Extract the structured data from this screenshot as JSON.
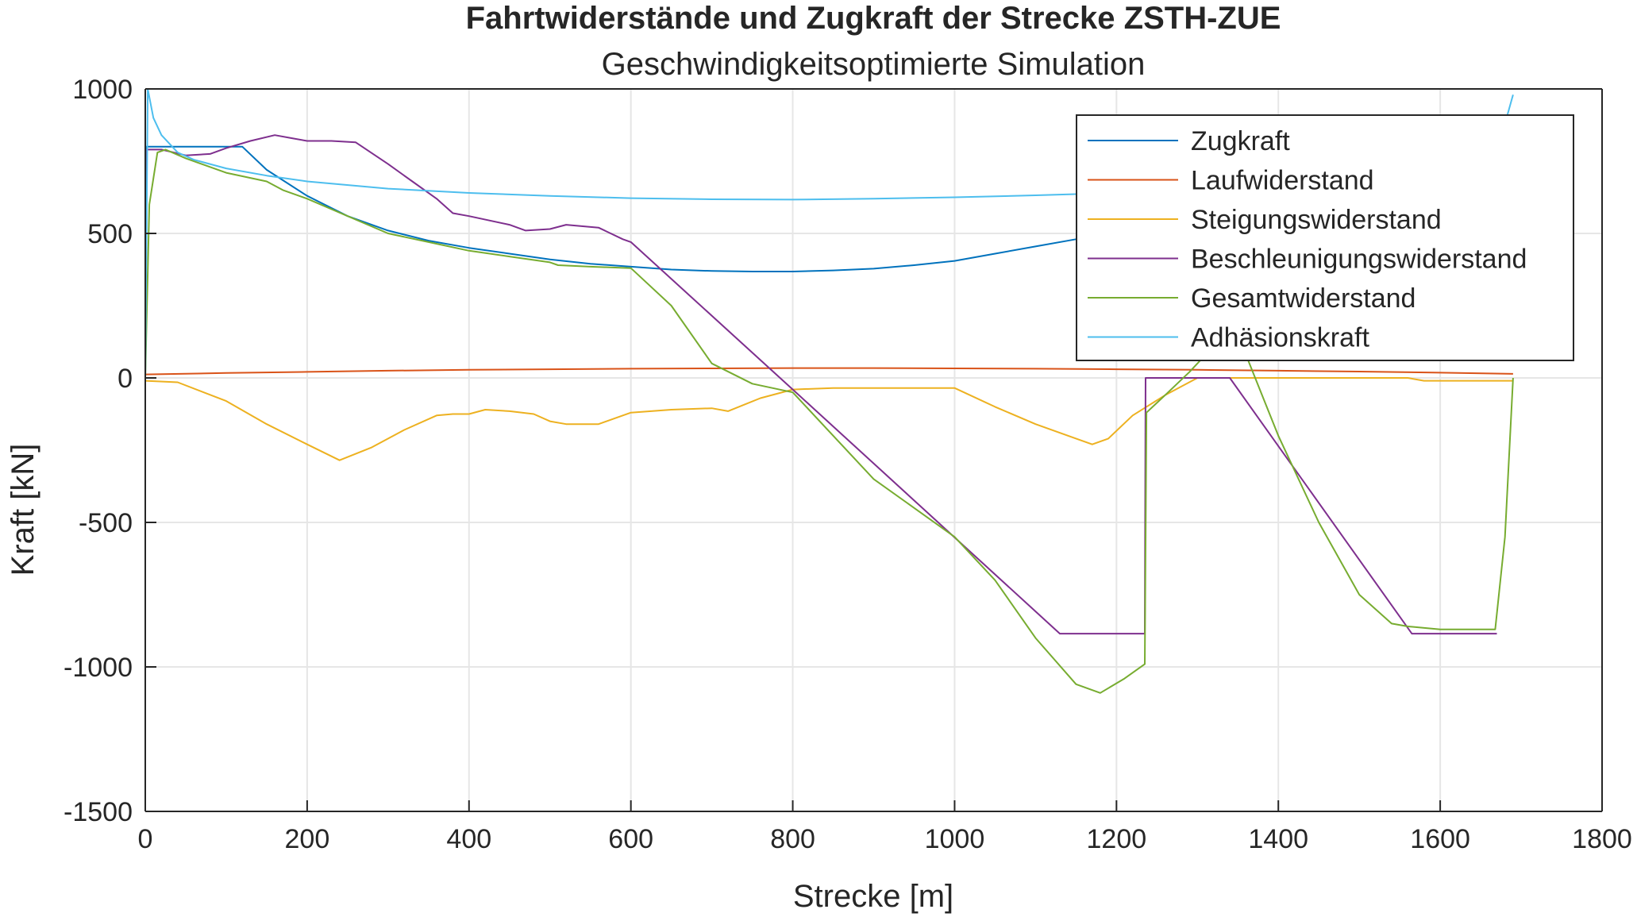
{
  "chart_data": {
    "type": "line",
    "title": "Fahrtwiderstände und Zugkraft der Strecke ZSTH-ZUE",
    "subtitle": "Geschwindigkeitsoptimierte Simulation",
    "xlabel": "Strecke [m]",
    "ylabel": "Kraft [kN]",
    "xlim": [
      0,
      1800
    ],
    "ylim": [
      -1500,
      1000
    ],
    "xticks": [
      0,
      200,
      400,
      600,
      800,
      1000,
      1200,
      1400,
      1600,
      1800
    ],
    "yticks": [
      -1500,
      -1000,
      -500,
      0,
      500,
      1000
    ],
    "xtick_labels": [
      "0",
      "200",
      "400",
      "600",
      "800",
      "1000",
      "1200",
      "1400",
      "1600",
      "1800"
    ],
    "ytick_labels": [
      "-1500",
      "-1000",
      "-500",
      "0",
      "500",
      "1000"
    ],
    "grid": true,
    "legend_position": "top-right",
    "series": [
      {
        "name": "Zugkraft",
        "color": "#0072BD",
        "x": [
          0,
          1,
          2,
          60,
          120,
          150,
          200,
          250,
          300,
          350,
          400,
          450,
          500,
          550,
          600,
          650,
          700,
          750,
          800,
          850,
          900,
          950,
          1000,
          1050,
          1100,
          1150,
          1180
        ],
        "y": [
          0,
          800,
          800,
          800,
          800,
          720,
          630,
          560,
          510,
          475,
          450,
          430,
          410,
          395,
          385,
          375,
          370,
          368,
          368,
          372,
          378,
          390,
          405,
          430,
          455,
          480,
          500
        ]
      },
      {
        "name": "Laufwiderstand",
        "color": "#D95319",
        "x": [
          0,
          100,
          200,
          300,
          400,
          500,
          600,
          700,
          800,
          900,
          1000,
          1100,
          1200,
          1300,
          1400,
          1500,
          1600,
          1690
        ],
        "y": [
          12,
          17,
          21,
          25,
          28,
          30,
          32,
          33,
          34,
          34,
          33,
          32,
          30,
          28,
          25,
          22,
          18,
          14
        ]
      },
      {
        "name": "Steigungswiderstand",
        "color": "#EDB120",
        "x": [
          0,
          40,
          100,
          150,
          200,
          240,
          280,
          320,
          360,
          380,
          400,
          420,
          450,
          480,
          500,
          520,
          560,
          600,
          650,
          700,
          720,
          760,
          800,
          850,
          900,
          1000,
          1050,
          1100,
          1150,
          1170,
          1190,
          1220,
          1260,
          1300,
          1330,
          1560,
          1580,
          1600,
          1690
        ],
        "y": [
          -10,
          -15,
          -80,
          -160,
          -230,
          -285,
          -240,
          -180,
          -130,
          -125,
          -125,
          -110,
          -115,
          -125,
          -150,
          -160,
          -160,
          -120,
          -110,
          -105,
          -115,
          -70,
          -40,
          -35,
          -35,
          -35,
          -100,
          -160,
          -210,
          -230,
          -210,
          -130,
          -60,
          0,
          0,
          0,
          -10,
          -10,
          -10
        ]
      },
      {
        "name": "Beschleunigungswiderstand",
        "color": "#7E2F8E",
        "x": [
          0,
          2,
          20,
          50,
          80,
          100,
          130,
          160,
          180,
          200,
          230,
          260,
          300,
          330,
          360,
          380,
          400,
          450,
          470,
          500,
          520,
          560,
          590,
          600,
          800,
          1130,
          1235,
          1236,
          1340,
          1565,
          1670
        ],
        "y": [
          0,
          790,
          790,
          770,
          775,
          795,
          820,
          840,
          830,
          820,
          820,
          815,
          740,
          680,
          620,
          570,
          560,
          530,
          510,
          515,
          530,
          520,
          480,
          470,
          -40,
          -885,
          -885,
          0,
          0,
          -885,
          -885
        ]
      },
      {
        "name": "Gesamtwiderstand",
        "color": "#77AC30",
        "x": [
          0,
          5,
          15,
          25,
          50,
          100,
          150,
          170,
          200,
          250,
          300,
          350,
          400,
          450,
          500,
          510,
          550,
          600,
          650,
          700,
          750,
          800,
          850,
          900,
          950,
          1000,
          1050,
          1100,
          1150,
          1180,
          1210,
          1235,
          1237,
          1260,
          1290,
          1310,
          1330,
          1340,
          1360,
          1400,
          1450,
          1500,
          1540,
          1560,
          1600,
          1668,
          1680,
          1690
        ],
        "y": [
          0,
          600,
          780,
          790,
          760,
          710,
          680,
          650,
          620,
          560,
          500,
          470,
          440,
          420,
          400,
          390,
          385,
          380,
          250,
          50,
          -20,
          -50,
          -200,
          -350,
          -450,
          -550,
          -700,
          -900,
          -1060,
          -1090,
          -1040,
          -990,
          -120,
          -60,
          20,
          80,
          150,
          150,
          80,
          -200,
          -500,
          -750,
          -850,
          -860,
          -870,
          -870,
          -550,
          0
        ]
      },
      {
        "name": "Adhäsionskraft",
        "color": "#4DBEEE",
        "x": [
          0,
          3,
          10,
          20,
          40,
          60,
          100,
          150,
          200,
          300,
          400,
          500,
          600,
          700,
          800,
          900,
          1000,
          1100,
          1200,
          1300,
          1400,
          1500,
          1600,
          1650,
          1670,
          1680,
          1690
        ],
        "y": [
          0,
          1000,
          900,
          840,
          780,
          755,
          725,
          700,
          680,
          655,
          640,
          630,
          622,
          618,
          617,
          620,
          625,
          632,
          640,
          650,
          665,
          690,
          730,
          770,
          820,
          880,
          980
        ]
      }
    ]
  }
}
